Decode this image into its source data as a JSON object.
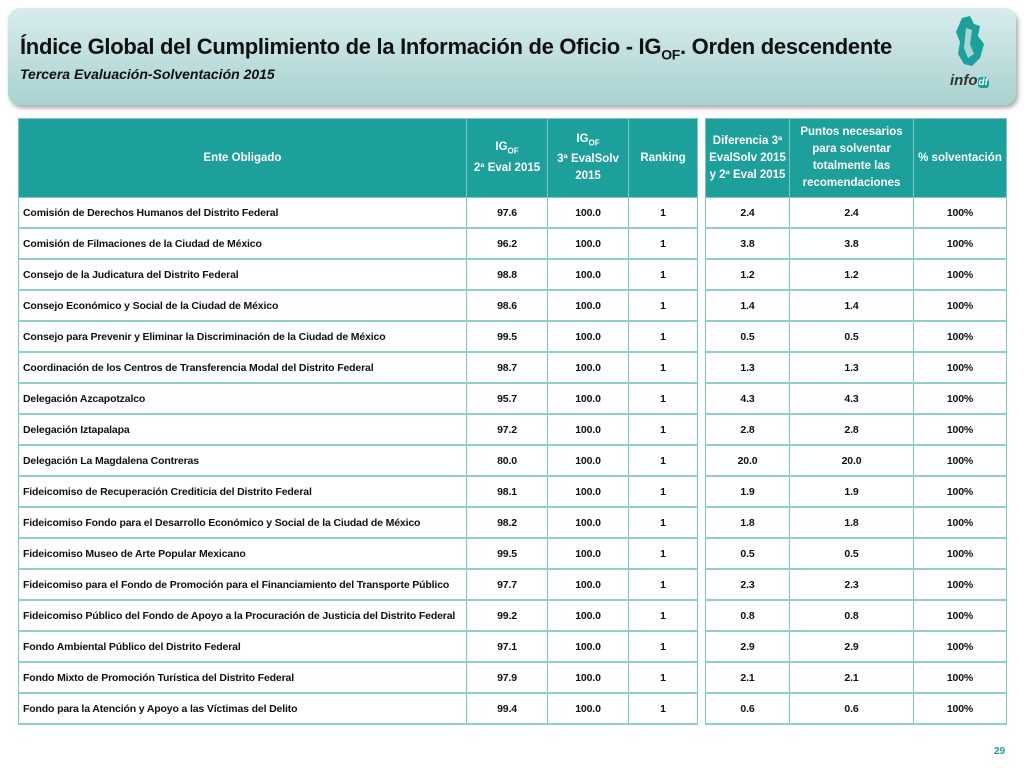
{
  "header": {
    "title_main": "Índice Global del Cumplimiento de la Información de Oficio - IG",
    "title_sub": "OF",
    "title_end": ". Orden descendente",
    "subtitle": "Tercera Evaluación-Solventación 2015"
  },
  "logo": {
    "info": "info",
    "df": "df"
  },
  "table": {
    "columns": [
      {
        "main": "Ente Obligado"
      },
      {
        "main": "IG",
        "sub": "OF",
        "rest": "2ª Eval 2015"
      },
      {
        "main": "IG",
        "sub": "OF",
        "rest": "3ª EvalSolv 2015"
      },
      {
        "main": "Ranking"
      },
      {
        "main": "Diferencia 3ª EvalSolv 2015 y 2ª Eval 2015"
      },
      {
        "main": "Puntos necesarios para solventar totalmente las recomendaciones"
      },
      {
        "main": "% solventación"
      }
    ],
    "rows": [
      [
        "Comisión de Derechos Humanos del Distrito Federal",
        "97.6",
        "100.0",
        "1",
        "2.4",
        "2.4",
        "100%"
      ],
      [
        "Comisión de Filmaciones de la Ciudad de México",
        "96.2",
        "100.0",
        "1",
        "3.8",
        "3.8",
        "100%"
      ],
      [
        "Consejo de la Judicatura del Distrito Federal",
        "98.8",
        "100.0",
        "1",
        "1.2",
        "1.2",
        "100%"
      ],
      [
        "Consejo Económico y Social de la Ciudad de México",
        "98.6",
        "100.0",
        "1",
        "1.4",
        "1.4",
        "100%"
      ],
      [
        "Consejo para Prevenir y Eliminar la Discriminación de la Ciudad de México",
        "99.5",
        "100.0",
        "1",
        "0.5",
        "0.5",
        "100%"
      ],
      [
        "Coordinación de los Centros de Transferencia Modal del Distrito Federal",
        "98.7",
        "100.0",
        "1",
        "1.3",
        "1.3",
        "100%"
      ],
      [
        "Delegación Azcapotzalco",
        "95.7",
        "100.0",
        "1",
        "4.3",
        "4.3",
        "100%"
      ],
      [
        "Delegación Iztapalapa",
        "97.2",
        "100.0",
        "1",
        "2.8",
        "2.8",
        "100%"
      ],
      [
        "Delegación La Magdalena Contreras",
        "80.0",
        "100.0",
        "1",
        "20.0",
        "20.0",
        "100%"
      ],
      [
        "Fideicomiso de Recuperación Crediticia del Distrito Federal",
        "98.1",
        "100.0",
        "1",
        "1.9",
        "1.9",
        "100%"
      ],
      [
        "Fideicomiso Fondo para el Desarrollo Económico y Social de la Ciudad de México",
        "98.2",
        "100.0",
        "1",
        "1.8",
        "1.8",
        "100%"
      ],
      [
        "Fideicomiso Museo de Arte Popular Mexicano",
        "99.5",
        "100.0",
        "1",
        "0.5",
        "0.5",
        "100%"
      ],
      [
        "Fideicomiso para el Fondo de Promoción para el Financiamiento del Transporte Público",
        "97.7",
        "100.0",
        "1",
        "2.3",
        "2.3",
        "100%"
      ],
      [
        "Fideicomiso Público del Fondo de Apoyo a la Procuración de Justicia del Distrito Federal",
        "99.2",
        "100.0",
        "1",
        "0.8",
        "0.8",
        "100%"
      ],
      [
        "Fondo Ambiental Público del Distrito Federal",
        "97.1",
        "100.0",
        "1",
        "2.9",
        "2.9",
        "100%"
      ],
      [
        "Fondo Mixto de Promoción Turística del Distrito Federal",
        "97.9",
        "100.0",
        "1",
        "2.1",
        "2.1",
        "100%"
      ],
      [
        "Fondo para la Atención y Apoyo a las Víctimas del Delito",
        "99.4",
        "100.0",
        "1",
        "0.6",
        "0.6",
        "100%"
      ]
    ]
  },
  "page_number": "29"
}
